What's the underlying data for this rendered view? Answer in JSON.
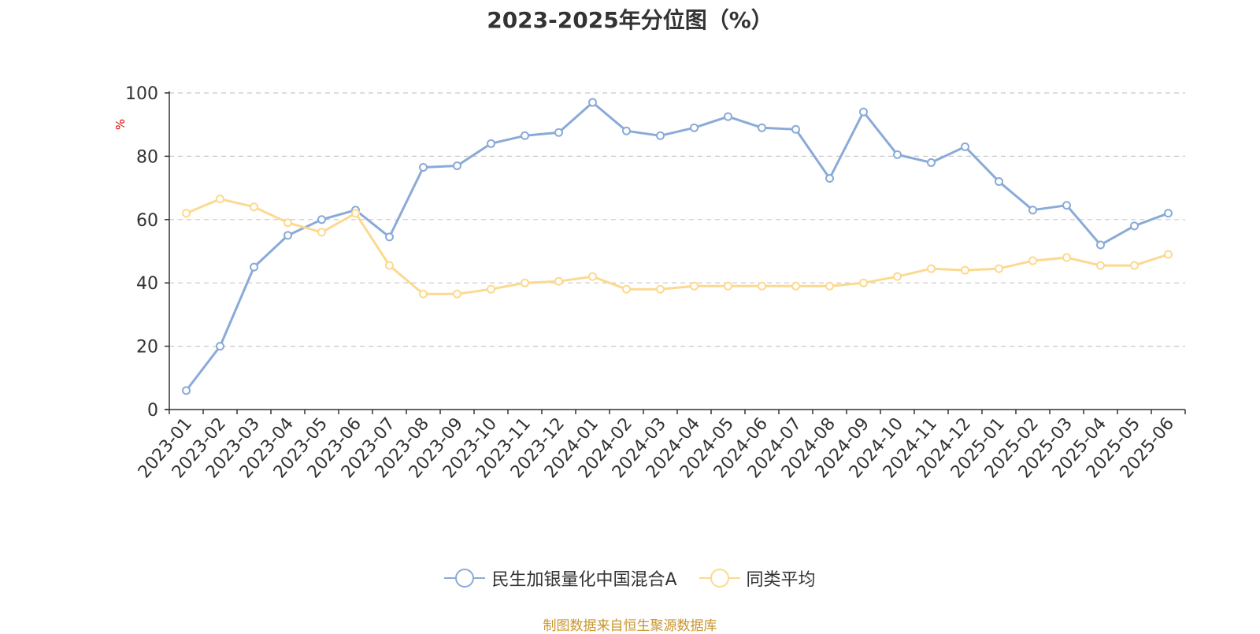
{
  "chart_data": {
    "type": "line",
    "title": "2023-2025年分位图（%）",
    "ylabel": "%",
    "ylim": [
      0,
      100
    ],
    "yticks": [
      0,
      20,
      40,
      60,
      80,
      100
    ],
    "grid": true,
    "legend_position": "bottom-center",
    "categories": [
      "2023-01",
      "2023-02",
      "2023-03",
      "2023-04",
      "2023-05",
      "2023-06",
      "2023-07",
      "2023-08",
      "2023-09",
      "2023-10",
      "2023-11",
      "2023-12",
      "2024-01",
      "2024-02",
      "2024-03",
      "2024-04",
      "2024-05",
      "2024-06",
      "2024-07",
      "2024-08",
      "2024-09",
      "2024-10",
      "2024-11",
      "2024-12",
      "2025-01",
      "2025-02",
      "2025-03",
      "2025-04",
      "2025-05",
      "2025-06"
    ],
    "series": [
      {
        "name": "民生加银量化中国混合A",
        "color": "#8aaad8",
        "values": [
          6,
          20,
          45,
          55,
          60,
          63,
          54.5,
          76.5,
          77,
          84,
          86.5,
          87.5,
          97,
          88,
          86.5,
          89,
          92.5,
          89,
          88.5,
          73,
          94,
          80.5,
          78,
          83,
          72,
          63,
          64.5,
          52,
          58,
          62
        ]
      },
      {
        "name": "同类平均",
        "color": "#fcd98f",
        "values": [
          62,
          66.5,
          64,
          59,
          56,
          62,
          45.5,
          36.5,
          36.5,
          38,
          40,
          40.5,
          42,
          38,
          38,
          39,
          39,
          39,
          39,
          39,
          40,
          42,
          44.5,
          44,
          44.5,
          47,
          48,
          45.5,
          45.5,
          49
        ]
      }
    ]
  },
  "source_text": "制图数据来自恒生聚源数据库"
}
